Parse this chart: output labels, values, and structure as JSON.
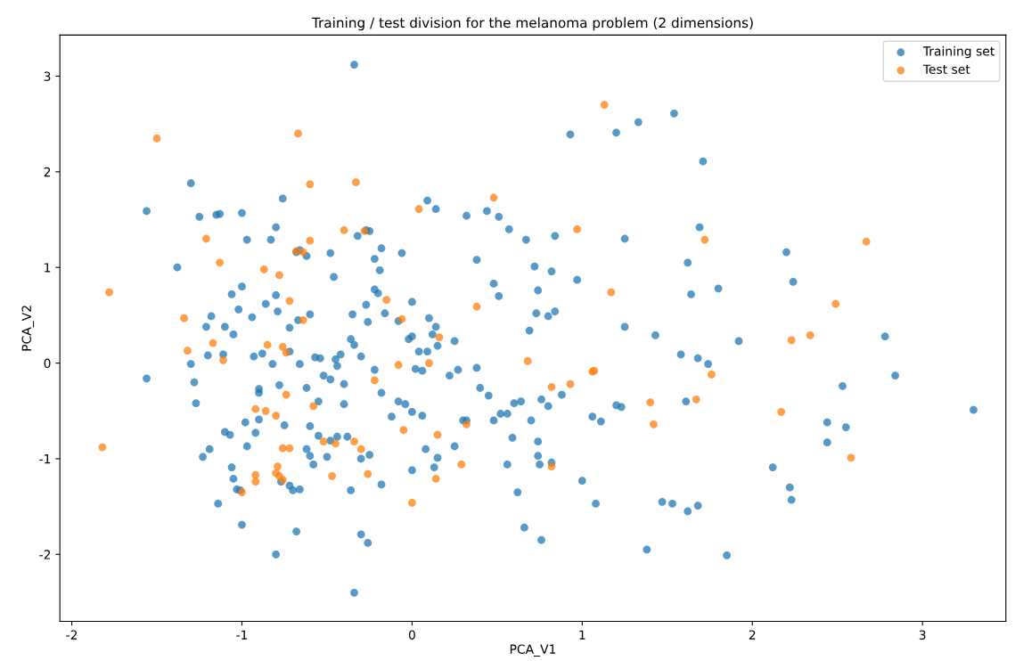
{
  "chart_data": {
    "type": "scatter",
    "title": "Training / test division for the melanoma problem (2 dimensions)",
    "xlabel": "PCA_V1",
    "ylabel": "PCA_V2",
    "xlim": [
      -2.07,
      3.49
    ],
    "ylim": [
      -2.7,
      3.43
    ],
    "xticks": [
      -2,
      -1,
      0,
      1,
      2,
      3
    ],
    "yticks": [
      -2,
      -1,
      0,
      1,
      2,
      3
    ],
    "legend": "top right",
    "grid": false,
    "marker": "circle",
    "series": [
      {
        "name": "Training set",
        "color": "#1f77b4",
        "x": [
          -0.34,
          -1.56,
          -1.56,
          -1.3,
          -1.38,
          -1.25,
          -1.15,
          -1.13,
          -1.0,
          -0.97,
          -0.8,
          -0.83,
          -0.76,
          -0.62,
          -0.66,
          -0.68,
          -0.48,
          -0.46,
          -0.32,
          -0.27,
          -0.25,
          -0.18,
          -0.22,
          -0.19,
          -0.06,
          0.09,
          0.14,
          0.32,
          0.44,
          0.51,
          0.57,
          0.67,
          0.84,
          0.93,
          1.2,
          1.33,
          1.54,
          1.71,
          1.25,
          1.69,
          2.2,
          2.24,
          1.62,
          1.64,
          1.8,
          0.97,
          0.82,
          0.72,
          0.74,
          0.48,
          0.51,
          0.38,
          0.84,
          0.8,
          0.69,
          0.73,
          1.25,
          1.43,
          1.58,
          1.74,
          1.68,
          1.92,
          2.78,
          2.84,
          3.3,
          2.53,
          2.44,
          2.44,
          2.55,
          2.12,
          2.22,
          2.23,
          1.61,
          1.2,
          1.23,
          1.06,
          1.11,
          0.88,
          0.8,
          0.7,
          0.6,
          0.64,
          0.76,
          0.74,
          0.74,
          0.82,
          0.75,
          0.59,
          0.56,
          0.62,
          0.66,
          0.76,
          1.0,
          1.08,
          1.47,
          1.53,
          1.62,
          1.68,
          1.38,
          1.85,
          0.52,
          0.56,
          0.48,
          0.4,
          0.38,
          0.27,
          0.25,
          0.22,
          0.14,
          0.12,
          0.1,
          0.15,
          0.09,
          0.04,
          -0.02,
          0.0,
          0.0,
          -0.08,
          -0.16,
          -0.22,
          -0.2,
          -0.27,
          -0.26,
          -0.35,
          -0.36,
          -0.34,
          -0.3,
          -0.42,
          -0.45,
          -0.54,
          -0.57,
          -0.6,
          -0.67,
          -0.72,
          -0.79,
          -0.8,
          -0.86,
          -0.94,
          -1.02,
          -1.0,
          -1.06,
          -1.1,
          -1.05,
          -1.11,
          -1.2,
          -1.18,
          -1.21,
          -1.3,
          -1.28,
          -1.27,
          -1.23,
          -1.19,
          -1.14,
          -1.1,
          -1.07,
          -1.06,
          -1.05,
          -1.03,
          -1.01,
          -1.0,
          -0.98,
          -0.97,
          -0.92,
          -0.9,
          -0.9,
          -0.9,
          -0.88,
          -0.82,
          -0.8,
          -0.77,
          -0.72,
          -0.7,
          -0.68,
          -0.66,
          -0.62,
          -0.6,
          -0.58,
          -0.55,
          -0.5,
          -0.48,
          -0.44,
          -0.4,
          -0.38,
          -0.3,
          -0.25,
          -0.18,
          -0.3,
          -0.26,
          -0.34,
          -0.36,
          -0.52,
          -0.6,
          -0.62,
          -0.72,
          -0.66,
          -0.48,
          -0.4,
          -0.22,
          -0.18,
          -0.12,
          -0.08,
          -0.04,
          0.02,
          0.06,
          0.0,
          0.06,
          0.08,
          0.15,
          0.13,
          0.0,
          0.25,
          0.3,
          0.32,
          0.45,
          -0.44,
          -0.55,
          -0.75,
          -0.93,
          -0.78
        ],
        "values": [
          3.12,
          1.59,
          -0.16,
          1.88,
          1.0,
          1.53,
          1.55,
          1.56,
          1.57,
          1.29,
          1.42,
          1.29,
          1.72,
          1.12,
          1.18,
          1.16,
          1.15,
          0.9,
          1.33,
          1.39,
          1.38,
          1.2,
          1.09,
          0.97,
          1.15,
          1.7,
          1.61,
          1.54,
          1.59,
          1.53,
          1.4,
          1.29,
          1.33,
          2.39,
          2.41,
          2.52,
          2.61,
          2.11,
          1.3,
          1.42,
          1.16,
          0.85,
          1.05,
          0.72,
          0.78,
          0.87,
          0.96,
          1.01,
          0.76,
          0.83,
          0.7,
          1.08,
          0.54,
          0.49,
          0.34,
          0.52,
          0.38,
          0.29,
          0.09,
          -0.01,
          0.05,
          0.23,
          0.28,
          -0.13,
          -0.49,
          -0.24,
          -0.62,
          -0.83,
          -0.67,
          -1.09,
          -1.3,
          -1.43,
          -0.4,
          -0.44,
          -0.46,
          -0.56,
          -0.61,
          -0.33,
          -0.45,
          -0.6,
          -0.42,
          -0.4,
          -0.38,
          -0.82,
          -0.97,
          -1.04,
          -1.06,
          -0.78,
          -1.06,
          -1.35,
          -1.72,
          -1.85,
          -1.23,
          -1.47,
          -1.45,
          -1.47,
          -1.55,
          -1.49,
          -1.95,
          -2.01,
          -0.53,
          -0.53,
          -0.6,
          -0.26,
          -0.05,
          -0.07,
          0.23,
          -0.13,
          0.38,
          0.3,
          0.47,
          0.18,
          0.12,
          0.12,
          0.25,
          0.28,
          0.64,
          0.44,
          0.52,
          0.77,
          0.73,
          0.61,
          0.43,
          0.51,
          0.25,
          0.19,
          0.07,
          0.09,
          0.04,
          0.05,
          0.06,
          0.51,
          0.45,
          0.37,
          0.54,
          0.71,
          0.62,
          0.48,
          0.56,
          0.8,
          0.72,
          0.38,
          0.3,
          0.09,
          0.08,
          0.49,
          0.38,
          -0.01,
          -0.2,
          -0.42,
          -0.98,
          -0.9,
          -1.47,
          -0.72,
          -0.75,
          -1.09,
          -1.21,
          -1.32,
          -1.33,
          -1.69,
          -0.62,
          -0.87,
          -0.73,
          -0.59,
          -0.27,
          -0.31,
          0.1,
          -0.01,
          -2.0,
          -1.24,
          -1.28,
          -1.33,
          -1.76,
          -1.32,
          -0.9,
          -0.97,
          -1.06,
          -0.76,
          -0.98,
          -0.81,
          -0.77,
          -0.43,
          -0.77,
          -1.0,
          -0.96,
          -1.27,
          -1.79,
          -1.88,
          -2.4,
          -1.33,
          -0.13,
          -0.66,
          -0.26,
          0.12,
          -0.01,
          -0.17,
          -0.22,
          -0.07,
          -0.31,
          -0.56,
          -0.4,
          -0.43,
          -0.06,
          -0.08,
          -0.51,
          -0.55,
          -0.9,
          -0.99,
          -1.09,
          -1.12,
          -0.87,
          -0.6,
          -0.6,
          -0.34,
          -0.03,
          -0.4,
          -0.65,
          0.07,
          -0.23
        ]
      },
      {
        "name": "Test set",
        "color": "#ff7f0e",
        "x": [
          -1.5,
          -1.78,
          -1.82,
          -0.67,
          -0.6,
          -0.33,
          -0.6,
          -0.64,
          -0.68,
          -1.21,
          -1.13,
          -0.87,
          -0.78,
          -0.72,
          -0.64,
          -0.4,
          -0.28,
          0.04,
          -0.15,
          -0.06,
          0.48,
          0.97,
          1.13,
          1.72,
          2.67,
          1.17,
          2.49,
          2.23,
          2.34,
          1.76,
          1.67,
          2.17,
          2.58,
          1.42,
          1.4,
          1.07,
          1.06,
          0.93,
          0.82,
          0.68,
          0.82,
          0.38,
          0.32,
          0.29,
          0.15,
          0.14,
          0.0,
          0.16,
          -0.05,
          -0.08,
          -0.22,
          -0.34,
          -0.26,
          -0.45,
          -0.47,
          -0.58,
          -0.74,
          -0.8,
          -0.86,
          -0.92,
          -1.11,
          -1.17,
          -1.32,
          -1.34,
          -0.76,
          -0.74,
          -0.85,
          -0.76,
          -0.79,
          -0.8,
          -0.78,
          -0.76,
          -0.72,
          -0.92,
          -0.92,
          -1.0,
          -0.52,
          -0.3,
          0.1
        ],
        "values": [
          2.35,
          0.74,
          -0.88,
          2.4,
          1.87,
          1.89,
          1.28,
          1.16,
          1.17,
          1.3,
          1.05,
          0.98,
          0.92,
          0.65,
          0.45,
          1.39,
          1.38,
          1.61,
          0.66,
          0.46,
          1.73,
          1.4,
          2.7,
          1.29,
          1.27,
          0.74,
          0.62,
          0.24,
          0.29,
          -0.12,
          -0.38,
          -0.51,
          -0.99,
          -0.64,
          -0.41,
          -0.08,
          -0.09,
          -0.22,
          -0.25,
          0.02,
          -1.08,
          0.59,
          -0.64,
          -1.06,
          -0.75,
          -1.21,
          -1.46,
          0.27,
          -0.7,
          -0.02,
          -0.18,
          -0.82,
          -1.16,
          -0.84,
          -1.18,
          -0.45,
          -0.33,
          -0.55,
          -0.5,
          -0.48,
          0.03,
          0.21,
          0.13,
          0.47,
          0.17,
          0.11,
          0.19,
          -0.89,
          -1.08,
          -1.15,
          -1.18,
          -1.22,
          -0.89,
          -1.17,
          -1.24,
          -1.35,
          -0.82,
          -0.9,
          0.0
        ]
      }
    ]
  }
}
